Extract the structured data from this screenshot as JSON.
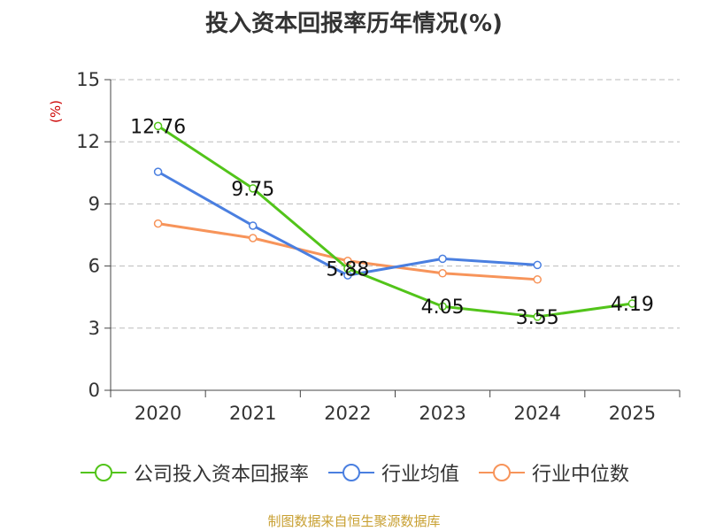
{
  "chart_data": {
    "type": "line",
    "title": "投入资本回报率历年情况(%)",
    "ylabel": "(%)",
    "xlabel": "",
    "ylim": [
      0,
      15
    ],
    "yticks": [
      0,
      3,
      6,
      9,
      12,
      15
    ],
    "grid": true,
    "legend_position": "bottom",
    "categories": [
      "2020",
      "2021",
      "2022",
      "2023",
      "2024",
      "2025"
    ],
    "series": [
      {
        "name": "公司投入资本回报率",
        "color": "#52c41a",
        "values": [
          12.76,
          9.75,
          5.88,
          4.05,
          3.55,
          4.19
        ],
        "labels": [
          "12.76",
          "9.75",
          "5.88",
          "4.05",
          "3.55",
          "4.19"
        ]
      },
      {
        "name": "行业均值",
        "color": "#4a7fe0",
        "values": [
          10.55,
          7.95,
          5.55,
          6.35,
          6.05,
          null
        ]
      },
      {
        "name": "行业中位数",
        "color": "#f7945a",
        "values": [
          8.05,
          7.35,
          6.25,
          5.65,
          5.35,
          null
        ]
      }
    ]
  },
  "source_note": "制图数据来自恒生聚源数据库"
}
